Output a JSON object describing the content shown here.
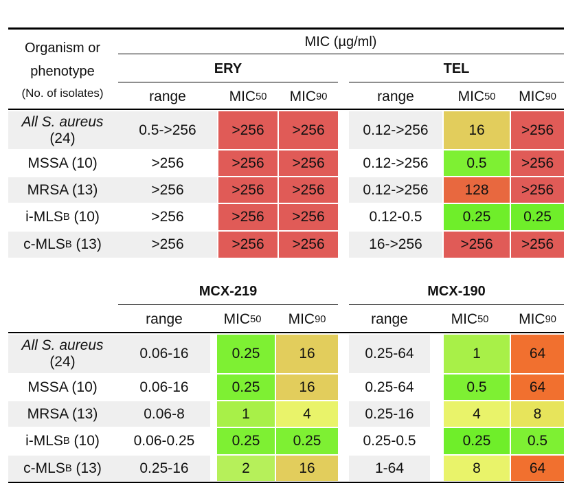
{
  "header": {
    "organism_line1": "Organism or",
    "organism_line2": "phenotype",
    "organism_line3": "(No. of isolates)",
    "mic_title": "MIC (µg/ml)",
    "col_range": "range",
    "col_mic": "MIC",
    "sub50": "50",
    "sub90": "90"
  },
  "drugs": {
    "ery": "ERY",
    "tel": "TEL",
    "mcx219": "MCX-219",
    "mcx190": "MCX-190"
  },
  "rows": [
    {
      "name_line1": "All S. aureus",
      "name_line2": "(24)"
    },
    {
      "name": "MSSA (10)"
    },
    {
      "name": "MRSA (13)"
    },
    {
      "name_pre": "i-MLS",
      "name_sub": "B",
      "name_post": " (10)"
    },
    {
      "name_pre": "c-MLS",
      "name_sub": "B",
      "name_post": " (13)"
    }
  ],
  "top_table": {
    "ery": [
      {
        "range": "0.5->256",
        "mic50": ">256",
        "mic90": ">256"
      },
      {
        "range": ">256",
        "mic50": ">256",
        "mic90": ">256"
      },
      {
        "range": ">256",
        "mic50": ">256",
        "mic90": ">256"
      },
      {
        "range": ">256",
        "mic50": ">256",
        "mic90": ">256"
      },
      {
        "range": ">256",
        "mic50": ">256",
        "mic90": ">256"
      }
    ],
    "tel": [
      {
        "range": "0.12->256",
        "mic50": "16",
        "mic90": ">256"
      },
      {
        "range": "0.12->256",
        "mic50": "0.5",
        "mic90": ">256"
      },
      {
        "range": "0.12->256",
        "mic50": "128",
        "mic90": ">256"
      },
      {
        "range": "0.12-0.5",
        "mic50": "0.25",
        "mic90": "0.25"
      },
      {
        "range": "16->256",
        "mic50": ">256",
        "mic90": ">256"
      }
    ]
  },
  "bottom_table": {
    "mcx219": [
      {
        "range": "0.06-16",
        "mic50": "0.25",
        "mic90": "16"
      },
      {
        "range": "0.06-16",
        "mic50": "0.25",
        "mic90": "16"
      },
      {
        "range": "0.06-8",
        "mic50": "1",
        "mic90": "4"
      },
      {
        "range": "0.06-0.25",
        "mic50": "0.25",
        "mic90": "0.25"
      },
      {
        "range": "0.25-16",
        "mic50": "2",
        "mic90": "16"
      }
    ],
    "mcx190": [
      {
        "range": "0.25-64",
        "mic50": "1",
        "mic90": "64"
      },
      {
        "range": "0.25-64",
        "mic50": "0.5",
        "mic90": "64"
      },
      {
        "range": "0.25-16",
        "mic50": "4",
        "mic90": "8"
      },
      {
        "range": "0.25-0.5",
        "mic50": "0.25",
        "mic90": "0.5"
      },
      {
        "range": "1-64",
        "mic50": "8",
        "mic90": "64"
      }
    ]
  },
  "colors": {
    "row_gray": "#efefef",
    "red": "#e05b57",
    "orange_red": "#e8683f",
    "orange": "#f1702f",
    "yellow_orange": "#e2cd5c",
    "yellow": "#e7e45b",
    "pale_yellow": "#e9f36a",
    "lime": "#a8f048",
    "green": "#7ef033",
    "bright_green": "#6fee2a"
  }
}
